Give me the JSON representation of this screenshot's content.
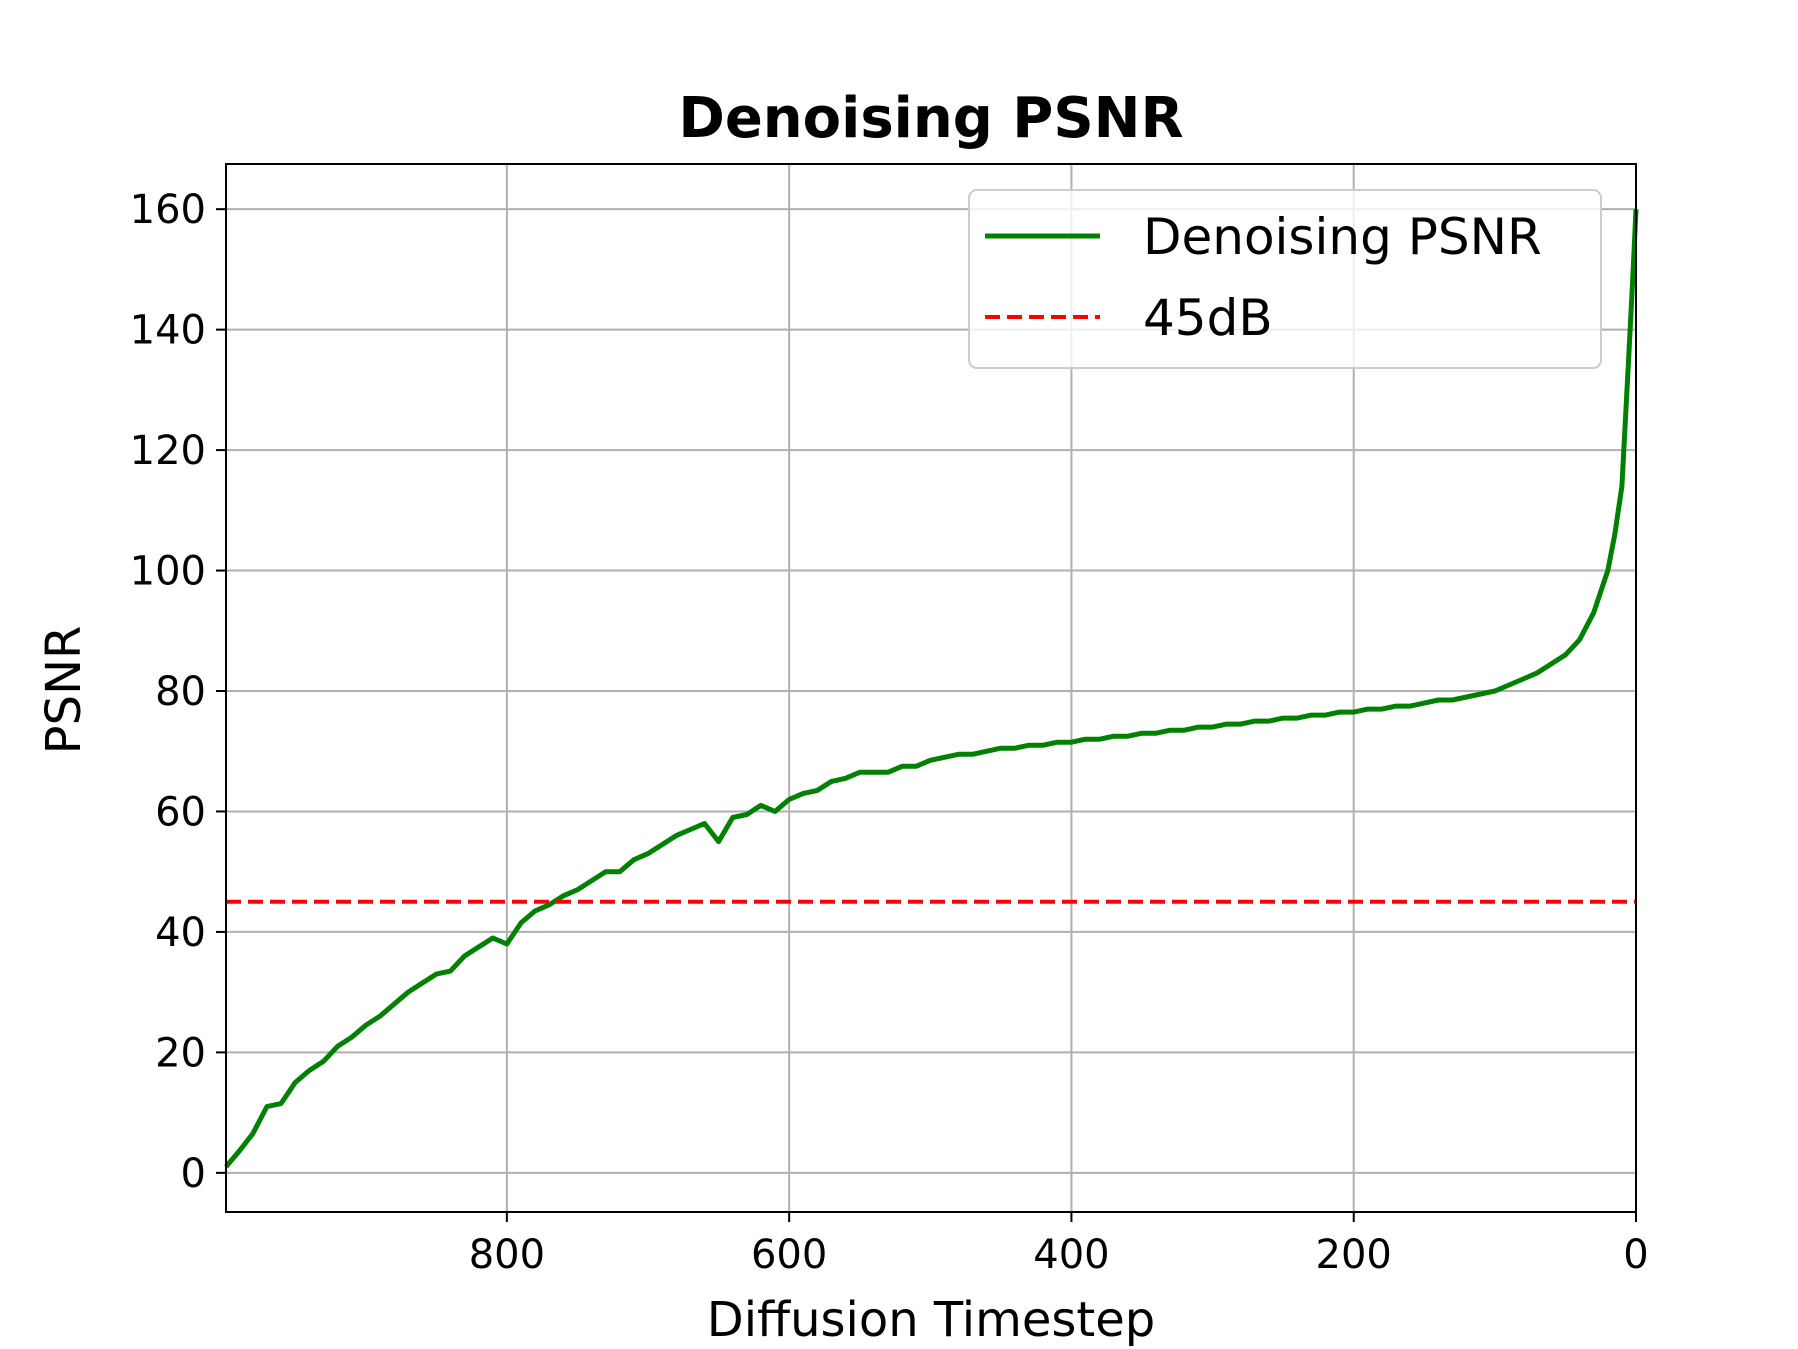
{
  "chart_data": {
    "type": "line",
    "title": "Denoising PSNR",
    "xlabel": "Diffusion Timestep",
    "ylabel": "PSNR",
    "xlim": [
      999,
      0
    ],
    "ylim": [
      -6.5,
      167.5
    ],
    "x_ticks": [
      800,
      600,
      400,
      200,
      0
    ],
    "x_tick_labels": [
      "800",
      "600",
      "400",
      "200",
      "0"
    ],
    "y_ticks": [
      0,
      20,
      40,
      60,
      80,
      100,
      120,
      140,
      160
    ],
    "y_tick_labels": [
      "0",
      "20",
      "40",
      "60",
      "80",
      "100",
      "120",
      "140",
      "160"
    ],
    "grid": true,
    "legend_position": "top-right",
    "series": [
      {
        "name": "Denoising PSNR",
        "color": "#008000",
        "style": "solid",
        "x": [
          999,
          990,
          980,
          970,
          960,
          950,
          940,
          930,
          920,
          910,
          900,
          890,
          880,
          870,
          860,
          850,
          840,
          830,
          820,
          810,
          800,
          790,
          780,
          770,
          760,
          750,
          740,
          730,
          720,
          710,
          700,
          690,
          680,
          670,
          660,
          650,
          640,
          630,
          620,
          610,
          600,
          590,
          580,
          570,
          560,
          550,
          540,
          530,
          520,
          510,
          500,
          490,
          480,
          470,
          460,
          450,
          440,
          430,
          420,
          410,
          400,
          390,
          380,
          370,
          360,
          350,
          340,
          330,
          320,
          310,
          300,
          290,
          280,
          270,
          260,
          250,
          240,
          230,
          220,
          210,
          200,
          190,
          180,
          170,
          160,
          150,
          140,
          130,
          120,
          110,
          100,
          90,
          80,
          70,
          60,
          50,
          40,
          30,
          20,
          15,
          10,
          5,
          2,
          0
        ],
        "values": [
          1,
          3.5,
          6.5,
          11,
          11.5,
          15,
          17,
          18.5,
          21,
          22.5,
          24.5,
          26,
          28,
          30,
          31.5,
          33,
          33.5,
          36,
          37.5,
          39,
          38,
          41.5,
          43.5,
          44.5,
          46,
          47,
          48.5,
          50,
          50,
          52,
          53,
          54.5,
          56,
          57,
          58,
          55,
          59,
          59.5,
          61,
          60,
          62,
          63,
          63.5,
          65,
          65.5,
          66.5,
          66.5,
          66.5,
          67.5,
          67.5,
          68.5,
          69,
          69.5,
          69.5,
          70,
          70.5,
          70.5,
          71,
          71,
          71.5,
          71.5,
          72,
          72,
          72.5,
          72.5,
          73,
          73,
          73.5,
          73.5,
          74,
          74,
          74.5,
          74.5,
          75,
          75,
          75.5,
          75.5,
          76,
          76,
          76.5,
          76.5,
          77,
          77,
          77.5,
          77.5,
          78,
          78.5,
          78.5,
          79,
          79.5,
          80,
          81,
          82,
          83,
          84.5,
          86,
          88.5,
          93,
          100,
          106,
          114,
          136,
          150,
          160
        ]
      },
      {
        "name": "45dB",
        "color": "#ff0000",
        "style": "dashed",
        "x": [
          999,
          0
        ],
        "values": [
          45,
          45
        ]
      }
    ]
  }
}
